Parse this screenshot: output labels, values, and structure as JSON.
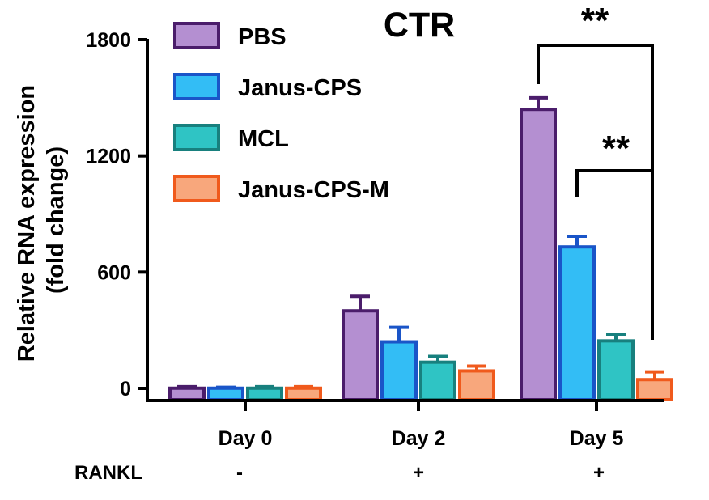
{
  "chart_data": {
    "type": "bar",
    "title": "CTR",
    "xlabel": "",
    "ylabel": "Relative RNA expression\n(fold change)",
    "ylabel_lines": [
      "Relative RNA expression",
      "(fold change)"
    ],
    "ylim": [
      0,
      1800
    ],
    "yticks": [
      "0",
      "600",
      "1200",
      "1800"
    ],
    "ytick_values": [
      0,
      600,
      1200,
      1800
    ],
    "categories": [
      "Day 0",
      "Day 2",
      "Day 5"
    ],
    "legend_position": "top-left",
    "series": [
      {
        "name": "PBS",
        "values": [
          1,
          400,
          1440
        ],
        "errors": [
          8,
          75,
          60
        ],
        "fill": "#b48fd1",
        "stroke": "#4b1d6b"
      },
      {
        "name": "Janus-CPS",
        "values": [
          1,
          240,
          730
        ],
        "errors": [
          5,
          75,
          55
        ],
        "fill": "#33bdf5",
        "stroke": "#1a55c8"
      },
      {
        "name": "MCL",
        "values": [
          1,
          135,
          245
        ],
        "errors": [
          8,
          30,
          35
        ],
        "fill": "#2fc4c4",
        "stroke": "#18807e"
      },
      {
        "name": "Janus-CPS-M",
        "values": [
          1,
          90,
          45
        ],
        "errors": [
          8,
          25,
          40
        ],
        "fill": "#f8a77c",
        "stroke": "#f05a1c"
      }
    ],
    "row_label": "RANKL",
    "row_values": [
      "-",
      "+",
      "+"
    ],
    "annotations": [
      {
        "label": "**",
        "text": "**",
        "from_series": 0,
        "to_series": 3,
        "category": 2
      },
      {
        "label": "**",
        "text": "**",
        "from_series": 1,
        "to_series": 3,
        "category": 2
      }
    ]
  }
}
